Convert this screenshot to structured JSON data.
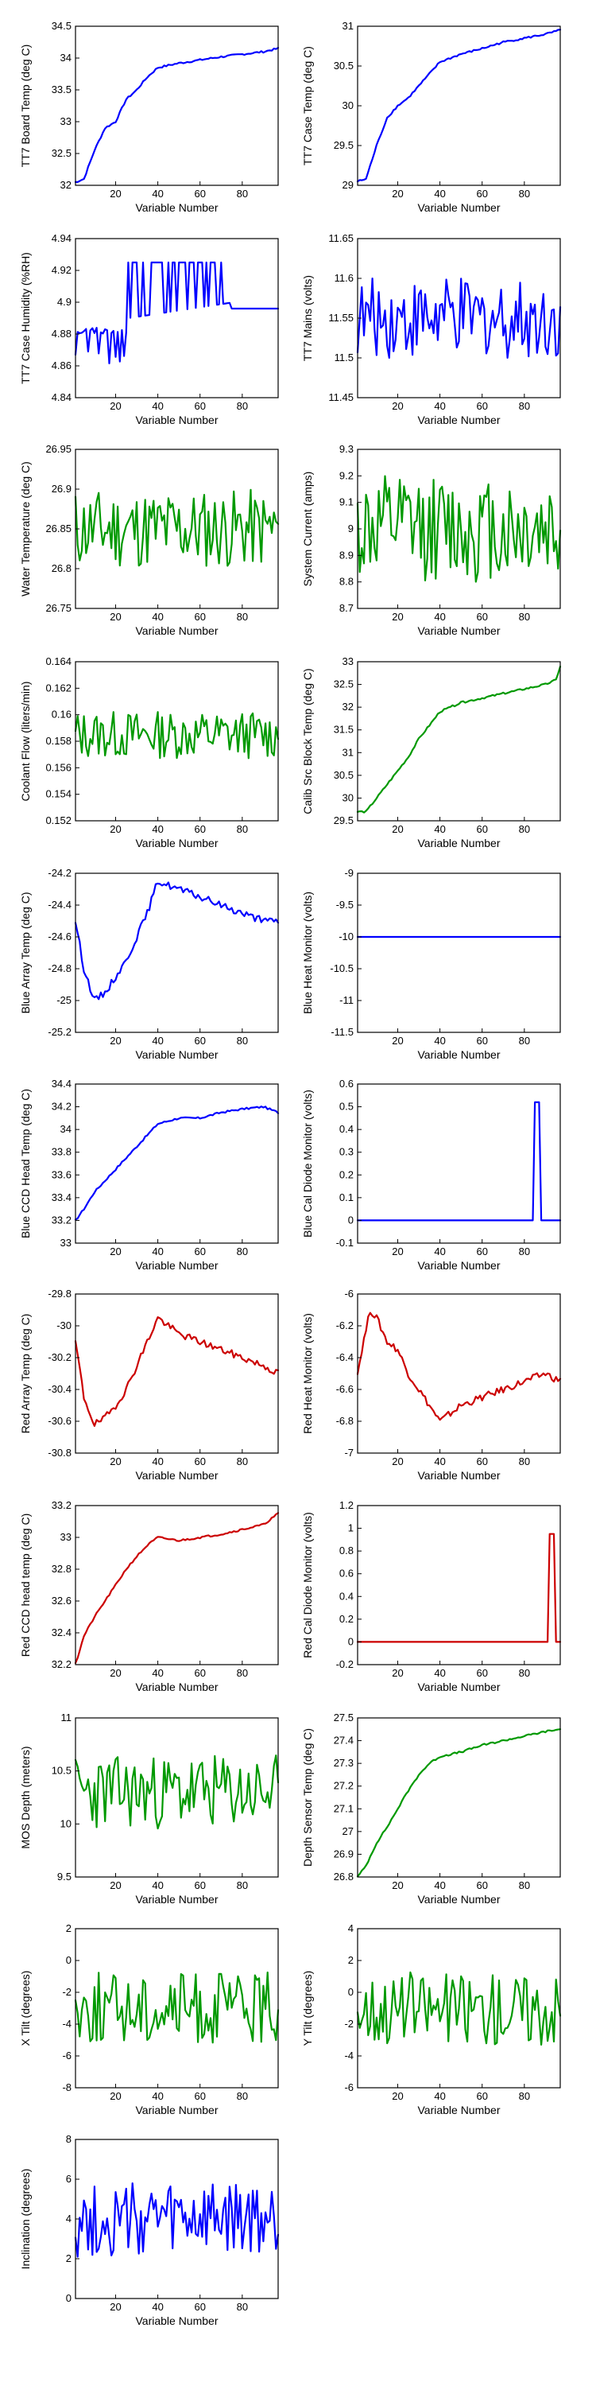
{
  "colors": {
    "blue": "#0000ff",
    "green": "#009900",
    "red": "#cc0000"
  },
  "chart_data": [
    {
      "type": "line",
      "ylabel": "TT7 Board Temp (deg C)",
      "xlabel": "Variable Number",
      "xlim": [
        1,
        97
      ],
      "ylim": [
        32,
        34.5
      ],
      "xticks": [
        "20",
        "40",
        "60",
        "80"
      ],
      "yticks": [
        "32",
        "32.5",
        "33",
        "33.5",
        "34",
        "34.5"
      ],
      "color": "blue",
      "shape": "ramp",
      "series": [
        {
          "x": [
            1,
            5,
            10,
            15,
            20,
            25,
            30,
            35,
            40,
            50,
            60,
            70,
            80,
            90,
            97
          ],
          "y": [
            32.05,
            32.1,
            32.55,
            32.9,
            33.0,
            33.35,
            33.5,
            33.7,
            33.85,
            33.92,
            33.97,
            34.02,
            34.06,
            34.1,
            34.15
          ]
        }
      ]
    },
    {
      "type": "line",
      "ylabel": "TT7 Case Temp (deg C)",
      "xlabel": "Variable Number",
      "xlim": [
        1,
        97
      ],
      "ylim": [
        29,
        31
      ],
      "xticks": [
        "20",
        "40",
        "60",
        "80"
      ],
      "yticks": [
        "29",
        "29.5",
        "30",
        "30.5",
        "31"
      ],
      "color": "blue",
      "shape": "ramp",
      "series": [
        {
          "x": [
            1,
            5,
            10,
            15,
            20,
            25,
            30,
            35,
            40,
            50,
            60,
            70,
            80,
            90,
            97
          ],
          "y": [
            29.05,
            29.08,
            29.5,
            29.85,
            30.0,
            30.1,
            30.25,
            30.4,
            30.55,
            30.65,
            30.72,
            30.8,
            30.85,
            30.9,
            30.95
          ]
        }
      ]
    },
    {
      "type": "line",
      "ylabel": "TT7 Case Humidity (%RH)",
      "xlabel": "Variable Number",
      "xlim": [
        1,
        97
      ],
      "ylim": [
        4.84,
        4.94
      ],
      "xticks": [
        "20",
        "40",
        "60",
        "80"
      ],
      "yticks": [
        "4.84",
        "4.86",
        "4.88",
        "4.9",
        "4.92",
        "4.94"
      ],
      "color": "blue",
      "shape": "humidity",
      "base": 4.885
    },
    {
      "type": "line",
      "ylabel": "TT7 Mains  (volts)",
      "xlabel": "Variable Number",
      "xlim": [
        1,
        97
      ],
      "ylim": [
        11.45,
        11.65
      ],
      "xticks": [
        "20",
        "40",
        "60",
        "80"
      ],
      "yticks": [
        "11.45",
        "11.5",
        "11.55",
        "11.6",
        "11.65"
      ],
      "color": "blue",
      "shape": "noise",
      "base": 11.55,
      "amp": 0.05
    },
    {
      "type": "line",
      "ylabel": "Water Temperature (deg C)",
      "xlabel": "Variable Number",
      "xlim": [
        1,
        97
      ],
      "ylim": [
        26.75,
        26.95
      ],
      "xticks": [
        "20",
        "40",
        "60",
        "80"
      ],
      "yticks": [
        "26.75",
        "26.8",
        "26.85",
        "26.9",
        "26.95"
      ],
      "color": "green",
      "shape": "noise",
      "base": 26.85,
      "amp": 0.05
    },
    {
      "type": "line",
      "ylabel": "System Current (amps)",
      "xlabel": "Variable Number",
      "xlim": [
        1,
        97
      ],
      "ylim": [
        8.7,
        9.3
      ],
      "xticks": [
        "20",
        "40",
        "60",
        "80"
      ],
      "yticks": [
        "8.7",
        "8.8",
        "8.9",
        "9",
        "9.1",
        "9.2",
        "9.3"
      ],
      "color": "green",
      "shape": "noise",
      "base": 9.0,
      "amp": 0.2
    },
    {
      "type": "line",
      "ylabel": "Coolant Flow (liters/min)",
      "xlabel": "Variable Number",
      "xlim": [
        1,
        97
      ],
      "ylim": [
        0.152,
        0.164
      ],
      "xticks": [
        "20",
        "40",
        "60",
        "80"
      ],
      "yticks": [
        "0.152",
        "0.154",
        "0.156",
        "0.158",
        "0.16",
        "0.162",
        "0.164"
      ],
      "color": "green",
      "shape": "noise",
      "base": 0.1585,
      "amp": 0.0018
    },
    {
      "type": "line",
      "ylabel": "Calib Src Block Temp (deg C)",
      "xlabel": "Variable Number",
      "xlim": [
        1,
        97
      ],
      "ylim": [
        29.5,
        33
      ],
      "xticks": [
        "20",
        "40",
        "60",
        "80"
      ],
      "yticks": [
        "29.5",
        "30",
        "30.5",
        "31",
        "31.5",
        "32",
        "32.5",
        "33"
      ],
      "color": "green",
      "shape": "ramp",
      "series": [
        {
          "x": [
            1,
            5,
            10,
            15,
            20,
            25,
            30,
            35,
            40,
            50,
            60,
            70,
            80,
            90,
            95,
            97
          ],
          "y": [
            29.7,
            29.7,
            30.0,
            30.3,
            30.6,
            30.9,
            31.3,
            31.6,
            31.9,
            32.1,
            32.2,
            32.3,
            32.4,
            32.5,
            32.6,
            32.9
          ]
        }
      ]
    },
    {
      "type": "line",
      "ylabel": "Blue Array Temp (deg C)",
      "xlabel": "Variable Number",
      "xlim": [
        1,
        97
      ],
      "ylim": [
        -25.2,
        -24.2
      ],
      "xticks": [
        "20",
        "40",
        "60",
        "80"
      ],
      "yticks": [
        "-25.2",
        "-25",
        "-24.8",
        "-24.6",
        "-24.4",
        "-24.2"
      ],
      "color": "blue",
      "shape": "curve",
      "series": [
        {
          "x": [
            1,
            5,
            10,
            15,
            20,
            25,
            30,
            35,
            40,
            50,
            60,
            70,
            80,
            90,
            97
          ],
          "y": [
            -24.5,
            -24.8,
            -25.0,
            -24.95,
            -24.85,
            -24.75,
            -24.6,
            -24.45,
            -24.25,
            -24.3,
            -24.35,
            -24.4,
            -24.45,
            -24.5,
            -24.5
          ]
        }
      ]
    },
    {
      "type": "line",
      "ylabel": "Blue Heat Monitor (volts)",
      "xlabel": "Variable Number",
      "xlim": [
        1,
        97
      ],
      "ylim": [
        -11.5,
        -9
      ],
      "xticks": [
        "20",
        "40",
        "60",
        "80"
      ],
      "yticks": [
        "-11.5",
        "-11",
        "-10.5",
        "-10",
        "-9.5",
        "-9"
      ],
      "color": "blue",
      "shape": "flat",
      "base": -10
    },
    {
      "type": "line",
      "ylabel": "Blue CCD Head Temp (deg C)",
      "xlabel": "Variable Number",
      "xlim": [
        1,
        97
      ],
      "ylim": [
        33,
        34.4
      ],
      "xticks": [
        "20",
        "40",
        "60",
        "80"
      ],
      "yticks": [
        "33",
        "33.2",
        "33.4",
        "33.6",
        "33.8",
        "34",
        "34.2",
        "34.4"
      ],
      "color": "blue",
      "shape": "ramp",
      "series": [
        {
          "x": [
            1,
            5,
            10,
            15,
            20,
            25,
            30,
            35,
            40,
            50,
            60,
            70,
            80,
            90,
            97
          ],
          "y": [
            33.2,
            33.3,
            33.45,
            33.55,
            33.65,
            33.75,
            33.85,
            33.95,
            34.05,
            34.1,
            34.1,
            34.15,
            34.18,
            34.2,
            34.15
          ]
        }
      ]
    },
    {
      "type": "line",
      "ylabel": "Blue Cal Diode Monitor (volts)",
      "xlabel": "Variable Number",
      "xlim": [
        1,
        97
      ],
      "ylim": [
        -0.1,
        0.6
      ],
      "xticks": [
        "20",
        "40",
        "60",
        "80"
      ],
      "yticks": [
        "-0.1",
        "0",
        "0.1",
        "0.2",
        "0.3",
        "0.4",
        "0.5",
        "0.6"
      ],
      "color": "blue",
      "shape": "spike",
      "base": 0,
      "spike": [
        85,
        87,
        0.52
      ]
    },
    {
      "type": "line",
      "ylabel": "Red Array Temp (deg C)",
      "xlabel": "Variable Number",
      "xlim": [
        1,
        97
      ],
      "ylim": [
        -30.8,
        -29.8
      ],
      "xticks": [
        "20",
        "40",
        "60",
        "80"
      ],
      "yticks": [
        "-30.8",
        "-30.6",
        "-30.4",
        "-30.2",
        "-30",
        "-29.8"
      ],
      "color": "red",
      "shape": "curve",
      "series": [
        {
          "x": [
            1,
            5,
            10,
            15,
            20,
            25,
            30,
            35,
            40,
            50,
            60,
            70,
            80,
            90,
            97
          ],
          "y": [
            -30.1,
            -30.45,
            -30.62,
            -30.58,
            -30.5,
            -30.4,
            -30.25,
            -30.1,
            -29.95,
            -30.05,
            -30.1,
            -30.15,
            -30.2,
            -30.25,
            -30.3
          ]
        }
      ]
    },
    {
      "type": "line",
      "ylabel": "Red Heat Monitor (volts)",
      "xlabel": "Variable Number",
      "xlim": [
        1,
        97
      ],
      "ylim": [
        -7,
        -6
      ],
      "xticks": [
        "20",
        "40",
        "60",
        "80"
      ],
      "yticks": [
        "-7",
        "-6.8",
        "-6.6",
        "-6.4",
        "-6.2",
        "-6"
      ],
      "color": "red",
      "shape": "curve",
      "series": [
        {
          "x": [
            1,
            3,
            7,
            10,
            15,
            20,
            25,
            30,
            35,
            40,
            45,
            50,
            60,
            70,
            80,
            90,
            97
          ],
          "y": [
            -6.5,
            -6.35,
            -6.1,
            -6.15,
            -6.3,
            -6.35,
            -6.5,
            -6.6,
            -6.7,
            -6.8,
            -6.75,
            -6.7,
            -6.65,
            -6.6,
            -6.55,
            -6.5,
            -6.55
          ]
        }
      ]
    },
    {
      "type": "line",
      "ylabel": "Red CCD head temp (deg C)",
      "xlabel": "Variable Number",
      "xlim": [
        1,
        97
      ],
      "ylim": [
        32.2,
        33.2
      ],
      "xticks": [
        "20",
        "40",
        "60",
        "80"
      ],
      "yticks": [
        "32.2",
        "32.4",
        "32.6",
        "32.8",
        "33",
        "33.2"
      ],
      "color": "red",
      "shape": "ramp",
      "series": [
        {
          "x": [
            1,
            5,
            10,
            15,
            20,
            25,
            30,
            35,
            40,
            50,
            60,
            70,
            80,
            90,
            97
          ],
          "y": [
            32.2,
            32.38,
            32.5,
            32.6,
            32.7,
            32.8,
            32.88,
            32.95,
            33.0,
            32.98,
            33.0,
            33.02,
            33.05,
            33.08,
            33.15
          ]
        }
      ]
    },
    {
      "type": "line",
      "ylabel": "Red Cal Diode Monitor (volts)",
      "xlabel": "Variable Number",
      "xlim": [
        1,
        97
      ],
      "ylim": [
        -0.2,
        1.2
      ],
      "xticks": [
        "20",
        "40",
        "60",
        "80"
      ],
      "yticks": [
        "-0.2",
        "0",
        "0.2",
        "0.4",
        "0.6",
        "0.8",
        "1",
        "1.2"
      ],
      "color": "red",
      "shape": "spike",
      "base": 0,
      "spike": [
        92,
        94,
        0.95
      ]
    },
    {
      "type": "line",
      "ylabel": "MOS Depth  (meters)",
      "xlabel": "Variable Number",
      "xlim": [
        1,
        97
      ],
      "ylim": [
        9.5,
        11
      ],
      "xticks": [
        "20",
        "40",
        "60",
        "80"
      ],
      "yticks": [
        "9.5",
        "10",
        "10.5",
        "11"
      ],
      "color": "green",
      "shape": "noise",
      "base": 10.3,
      "amp": 0.35
    },
    {
      "type": "line",
      "ylabel": "Depth Sensor Temp (deg C)",
      "xlabel": "Variable Number",
      "xlim": [
        1,
        97
      ],
      "ylim": [
        26.8,
        27.5
      ],
      "xticks": [
        "20",
        "40",
        "60",
        "80"
      ],
      "yticks": [
        "26.8",
        "26.9",
        "27",
        "27.1",
        "27.2",
        "27.3",
        "27.4",
        "27.5"
      ],
      "color": "green",
      "shape": "ramp",
      "series": [
        {
          "x": [
            1,
            5,
            10,
            15,
            20,
            25,
            30,
            35,
            40,
            50,
            60,
            70,
            80,
            90,
            97
          ],
          "y": [
            26.8,
            26.85,
            26.95,
            27.02,
            27.1,
            27.18,
            27.25,
            27.3,
            27.33,
            27.35,
            27.38,
            27.4,
            27.42,
            27.44,
            27.45
          ]
        }
      ]
    },
    {
      "type": "line",
      "ylabel": "X Tilt  (degrees)",
      "xlabel": "Variable Number",
      "xlim": [
        1,
        97
      ],
      "ylim": [
        -8,
        2
      ],
      "xticks": [
        "20",
        "40",
        "60",
        "80"
      ],
      "yticks": [
        "-8",
        "-6",
        "-4",
        "-2",
        "0",
        "2"
      ],
      "color": "green",
      "shape": "noise",
      "base": -3,
      "amp": 2.3
    },
    {
      "type": "line",
      "ylabel": "Y Tilt  (degrees)",
      "xlabel": "Variable Number",
      "xlim": [
        1,
        97
      ],
      "ylim": [
        -6,
        4
      ],
      "xticks": [
        "20",
        "40",
        "60",
        "80"
      ],
      "yticks": [
        "-6",
        "-4",
        "-2",
        "0",
        "2",
        "4"
      ],
      "color": "green",
      "shape": "noise",
      "base": -1,
      "amp": 2.3
    },
    {
      "type": "line",
      "ylabel": "Inclination  (degrees)",
      "xlabel": "Variable Number",
      "xlim": [
        1,
        97
      ],
      "ylim": [
        0,
        8
      ],
      "xticks": [
        "20",
        "40",
        "60",
        "80"
      ],
      "yticks": [
        "0",
        "2",
        "4",
        "6",
        "8"
      ],
      "color": "blue",
      "shape": "noise",
      "base": 3.9,
      "amp": 1.9
    }
  ]
}
